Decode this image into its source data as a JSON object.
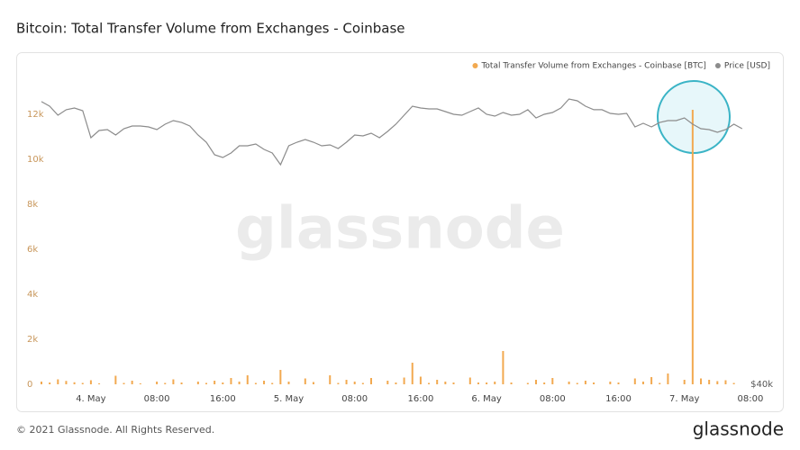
{
  "chart_data": {
    "type": "bar-line",
    "title": "Bitcoin: Total Transfer Volume from Exchanges - Coinbase",
    "watermark": "glassnode",
    "footer": "© 2021 Glassnode. All Rights Reserved.",
    "logo": "glassnode",
    "legend": "top-right",
    "categories": [
      null,
      null,
      null,
      null,
      null,
      null,
      "4. May",
      null,
      null,
      null,
      null,
      null,
      null,
      null,
      "08:00",
      null,
      null,
      null,
      null,
      null,
      null,
      null,
      "16:00",
      null,
      null,
      null,
      null,
      null,
      null,
      null,
      "5. May",
      null,
      null,
      null,
      null,
      null,
      null,
      null,
      "08:00",
      null,
      null,
      null,
      null,
      null,
      null,
      null,
      "16:00",
      null,
      null,
      null,
      null,
      null,
      null,
      null,
      "6. May",
      null,
      null,
      null,
      null,
      null,
      null,
      null,
      "08:00",
      null,
      null,
      null,
      null,
      null,
      null,
      null,
      "16:00",
      null,
      null,
      null,
      null,
      null,
      null,
      null,
      "7. May",
      null,
      null,
      null,
      null,
      null,
      null,
      null,
      "08:00"
    ],
    "series": [
      {
        "name": "Total Transfer Volume from Exchanges - Coinbase [BTC]",
        "color": "#f2a950",
        "kind": "bar",
        "values": [
          120,
          80,
          220,
          150,
          90,
          60,
          180,
          40,
          0,
          380,
          60,
          160,
          40,
          0,
          120,
          60,
          220,
          80,
          0,
          120,
          60,
          160,
          80,
          280,
          120,
          400,
          60,
          160,
          60,
          640,
          120,
          0,
          260,
          100,
          0,
          400,
          60,
          200,
          120,
          60,
          280,
          0,
          160,
          80,
          300,
          960,
          340,
          60,
          200,
          120,
          80,
          0,
          300,
          80,
          80,
          120,
          1480,
          80,
          0,
          60,
          200,
          80,
          280,
          0,
          120,
          60,
          160,
          80,
          0,
          120,
          80,
          0,
          260,
          120,
          320,
          60,
          480,
          0,
          200,
          12200,
          260,
          200,
          140,
          180,
          60,
          0,
          null
        ]
      },
      {
        "name": "Price [USD]",
        "color": "#8c8c8c",
        "kind": "line",
        "axis": "y2",
        "values": [
          57130,
          56855,
          56310,
          56640,
          56745,
          56580,
          54945,
          55380,
          55435,
          55110,
          55490,
          55655,
          55655,
          55600,
          55435,
          55765,
          55980,
          55870,
          55655,
          55110,
          54675,
          53910,
          53745,
          54020,
          54455,
          54455,
          54565,
          54235,
          54020,
          53310,
          54455,
          54675,
          54835,
          54675,
          54455,
          54510,
          54290,
          54675,
          55110,
          55055,
          55220,
          54945,
          55325,
          55765,
          56310,
          56855,
          56745,
          56690,
          56690,
          56525,
          56365,
          56310,
          56525,
          56745,
          56365,
          56255,
          56475,
          56310,
          56365,
          56640,
          56145,
          56365,
          56475,
          56745,
          57290,
          57180,
          56855,
          56640,
          56640,
          56420,
          56365,
          56420,
          55600,
          55820,
          55600,
          55870,
          55980,
          55980,
          56145,
          55765,
          55490,
          55435,
          55275,
          55435,
          55765,
          55490,
          null
        ]
      }
    ],
    "ylim": [
      0,
      13200
    ],
    "yticks": [
      0,
      {
        "value": 2000,
        "label": "2k"
      },
      {
        "value": 4000,
        "label": "4k"
      },
      {
        "value": 6000,
        "label": "6k"
      },
      {
        "value": 8000,
        "label": "8k"
      },
      {
        "value": 10000,
        "label": "10k"
      },
      {
        "value": 12000,
        "label": "12k"
      }
    ],
    "y2lim": [
      40000,
      58000
    ],
    "y2ticks": [
      {
        "value": 40000,
        "label": "$40k"
      }
    ],
    "grid": false
  }
}
